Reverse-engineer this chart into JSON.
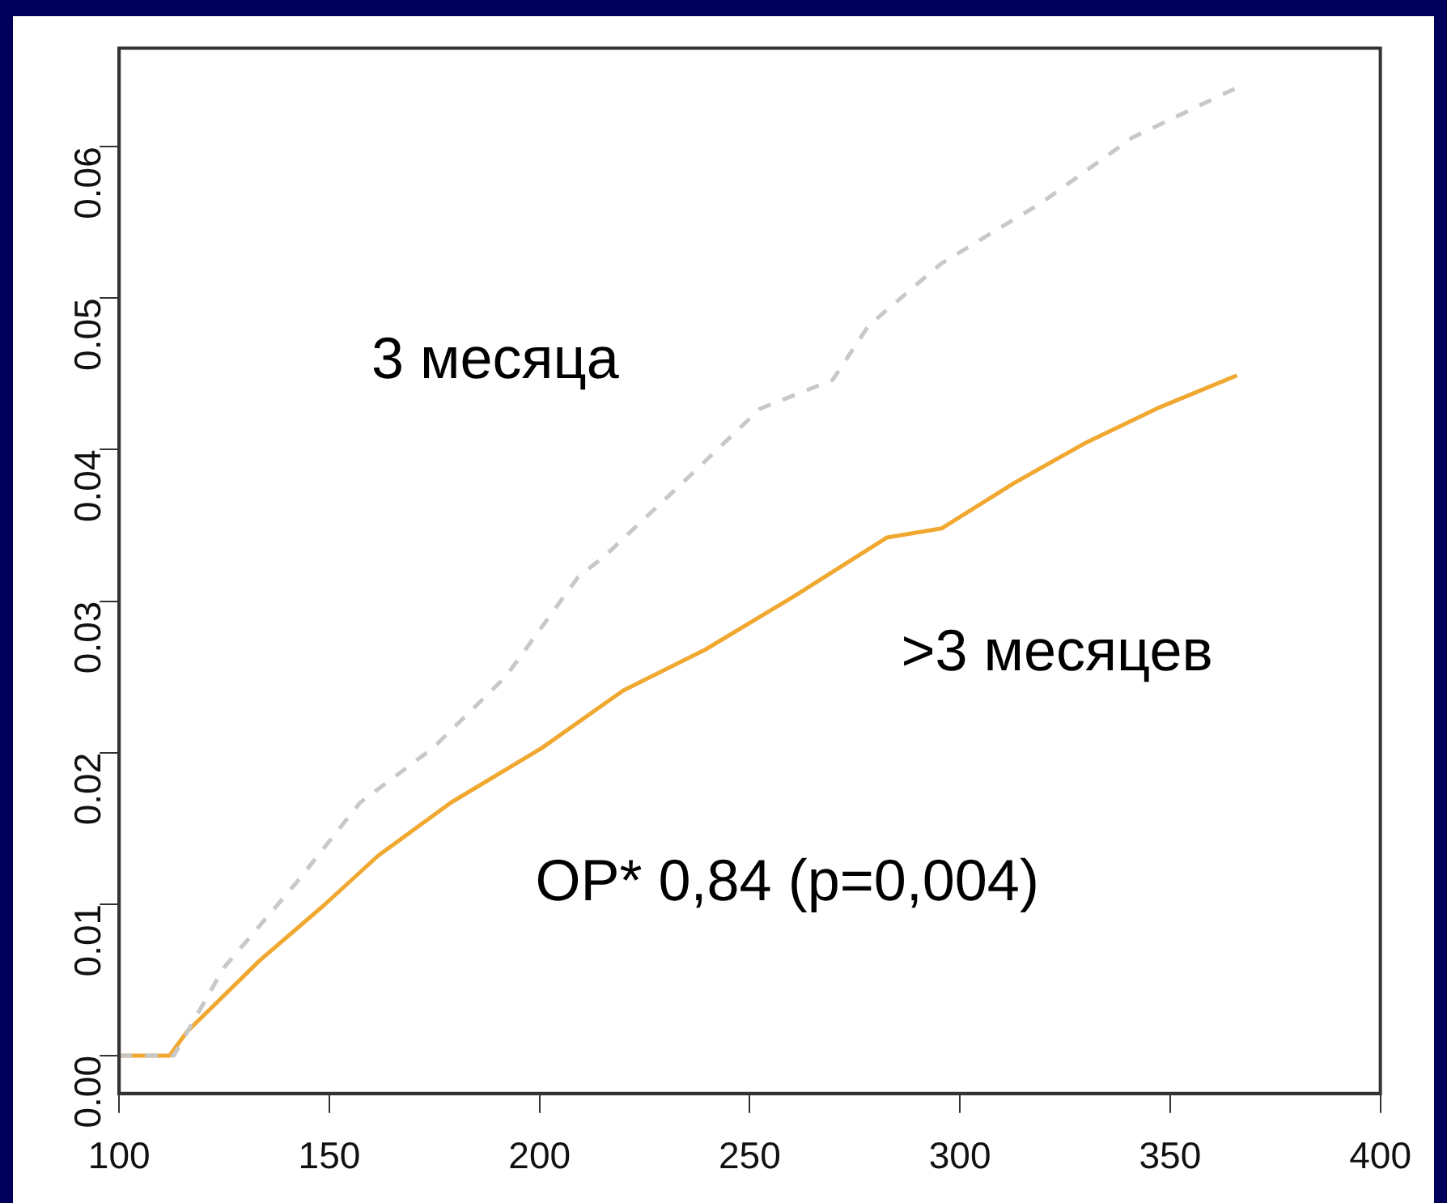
{
  "chart_data": {
    "type": "line",
    "xlim": [
      100,
      400
    ],
    "xticks": [
      100,
      150,
      200,
      250,
      300,
      350,
      400
    ],
    "ylim": [
      -0.0025,
      0.0665
    ],
    "yticks": [
      {
        "value": 0,
        "label": "0.00"
      },
      {
        "value": 0.01,
        "label": "0.01"
      },
      {
        "value": 0.02,
        "label": "0.02"
      },
      {
        "value": 0.03,
        "label": "0.03"
      },
      {
        "value": 0.04,
        "label": "0.04"
      },
      {
        "value": 0.05,
        "label": "0.05"
      },
      {
        "value": 0.06,
        "label": "0.06"
      }
    ],
    "grid": false,
    "legend": false,
    "marker": "none",
    "series": [
      {
        "name": "3 месяца",
        "color": "#c8c8c8",
        "line_style": "dashed",
        "x": [
          100,
          113,
          124.9,
          142.1,
          157.3,
          174.6,
          191.9,
          209.2,
          215.6,
          235.1,
          252.4,
          269.7,
          278.3,
          295.6,
          319.4,
          341,
          365.9
        ],
        "values": [
          0,
          0,
          0.0058,
          0.0114,
          0.0167,
          0.0203,
          0.025,
          0.0316,
          0.033,
          0.0381,
          0.0427,
          0.0446,
          0.0482,
          0.0523,
          0.0563,
          0.0606,
          0.0639
        ]
      },
      {
        "name": ">3 месяцев",
        "color": "#f0a830",
        "line_style": "solid",
        "x": [
          100,
          112,
          116.2,
          133.5,
          148.6,
          161.6,
          178.9,
          200.5,
          219.9,
          239.4,
          261,
          282.6,
          295.6,
          312.9,
          330.2,
          347.5,
          365.9
        ],
        "values": [
          0,
          0,
          0.0016,
          0.0063,
          0.0099,
          0.0132,
          0.0167,
          0.0203,
          0.0241,
          0.0268,
          0.0304,
          0.0342,
          0.0348,
          0.0378,
          0.0405,
          0.0428,
          0.0449
        ]
      }
    ],
    "annotations": [
      "ОР* 0,84 (p=0,004)"
    ]
  }
}
